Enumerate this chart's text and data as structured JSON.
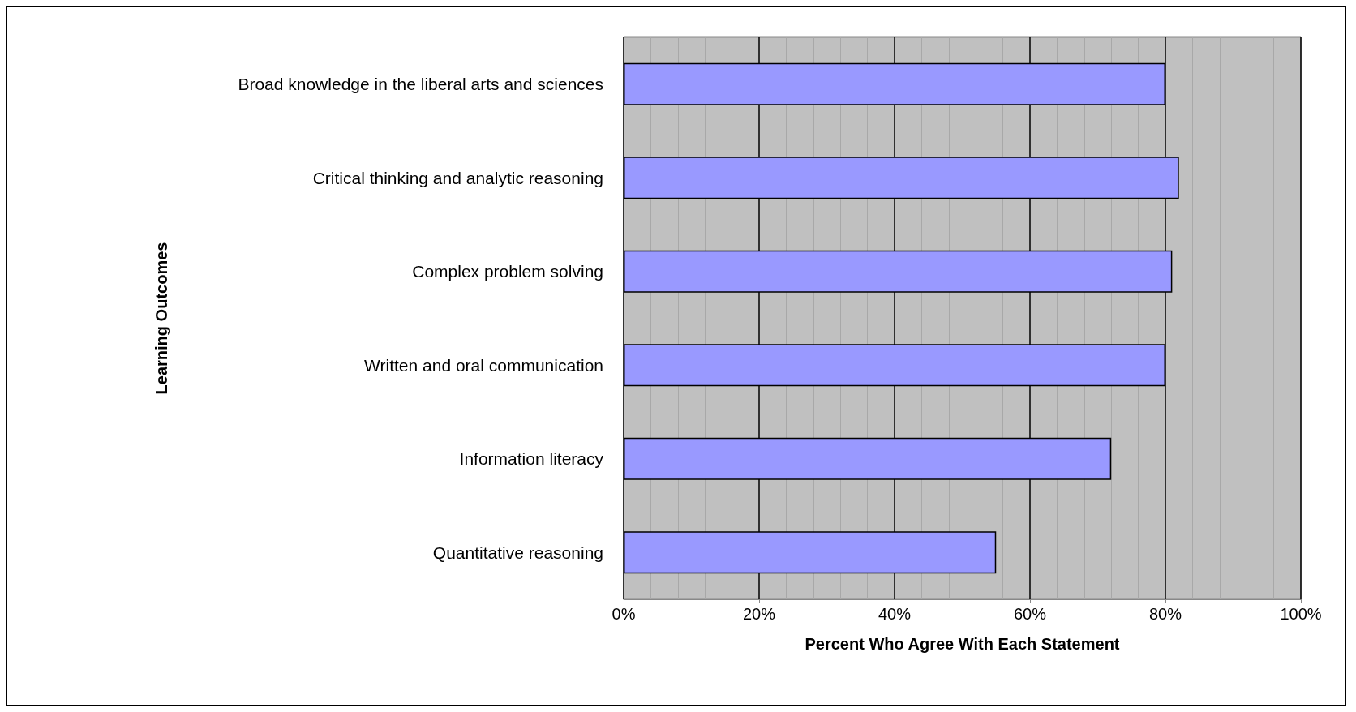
{
  "chart_data": {
    "type": "bar",
    "orientation": "horizontal",
    "xlabel": "Percent Who Agree With Each Statement",
    "ylabel": "Learning Outcomes",
    "categories": [
      "Broad knowledge in the liberal arts and sciences",
      "Critical thinking and analytic reasoning",
      "Complex problem solving",
      "Written and oral communication",
      "Information literacy",
      "Quantitative reasoning"
    ],
    "values": [
      80,
      82,
      81,
      80,
      72,
      55
    ],
    "color": "#9999ff",
    "xlim": [
      0,
      100
    ],
    "xticks": [
      {
        "value": 0,
        "label": "0%"
      },
      {
        "value": 20,
        "label": "20%"
      },
      {
        "value": 40,
        "label": "40%"
      },
      {
        "value": 60,
        "label": "60%"
      },
      {
        "value": 80,
        "label": "80%"
      },
      {
        "value": 100,
        "label": "100%"
      }
    ],
    "grid": "x"
  }
}
